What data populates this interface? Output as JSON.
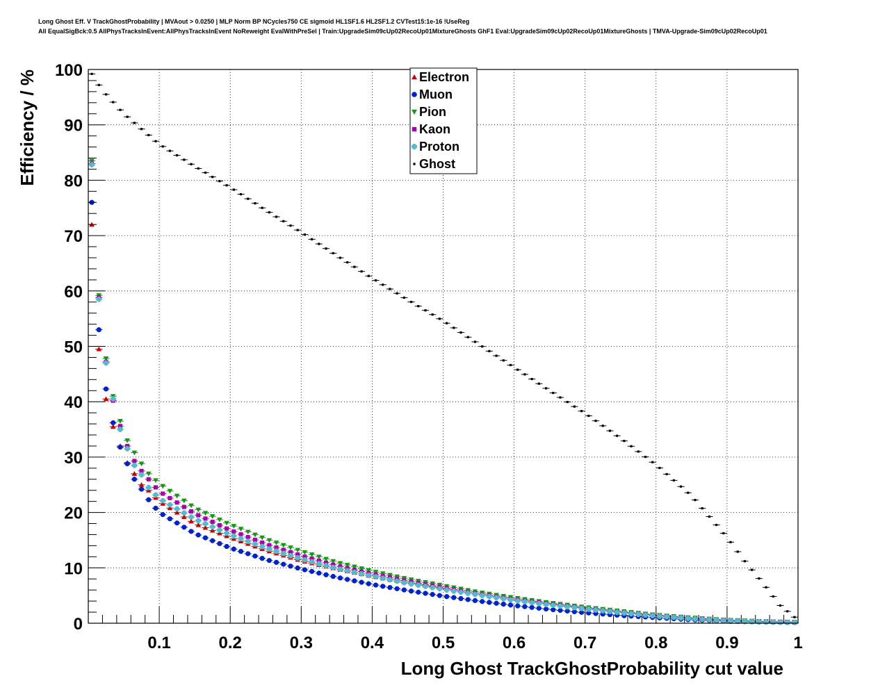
{
  "header": {
    "title_line1": "Long Ghost Eff. V TrackGhostProbability | MVAout > 0.0250 | MLP Norm BP NCycles750 CE sigmoid HL1SF1.6 HL2SF1.2 CVTest15:1e-16 !UseReg",
    "title_line2": "All EqualSigBck:0.5 AllPhysTracksInEvent:AllPhysTracksInEvent NoReweight EvalWithPreSel | Train:UpgradeSim09cUp02RecoUp01MixtureGhosts GhF1 Eval:UpgradeSim09cUp02RecoUp01MixtureGhosts | TMVA-Upgrade-Sim09cUp02RecoUp01"
  },
  "chart_data": {
    "type": "scatter",
    "xlabel": "Long Ghost TrackGhostProbability cut value",
    "ylabel": "Efficiency / %",
    "xlim": [
      0,
      1
    ],
    "ylim": [
      0,
      100
    ],
    "xticks": [
      "0.1",
      "0.2",
      "0.3",
      "0.4",
      "0.5",
      "0.6",
      "0.7",
      "0.8",
      "0.9",
      "1"
    ],
    "yticks": [
      "0",
      "10",
      "20",
      "30",
      "40",
      "50",
      "60",
      "70",
      "80",
      "90",
      "100"
    ],
    "grid": true,
    "legend_position": "top-center",
    "x_step": 0.01,
    "series": [
      {
        "name": "Electron",
        "color": "#cc0000",
        "marker": "triangle-up",
        "anchors": [
          [
            0.005,
            72
          ],
          [
            0.015,
            49.5
          ],
          [
            0.025,
            40.5
          ],
          [
            0.035,
            35.5
          ],
          [
            0.045,
            32
          ],
          [
            0.055,
            29
          ],
          [
            0.065,
            27
          ],
          [
            0.075,
            25
          ],
          [
            0.085,
            24
          ],
          [
            0.1,
            22
          ],
          [
            0.15,
            18
          ],
          [
            0.2,
            15.5
          ],
          [
            0.25,
            13.2
          ],
          [
            0.3,
            11.3
          ],
          [
            0.35,
            9.8
          ],
          [
            0.4,
            8.5
          ],
          [
            0.45,
            7.3
          ],
          [
            0.5,
            6.3
          ],
          [
            0.55,
            5.3
          ],
          [
            0.6,
            4.3
          ],
          [
            0.65,
            3.5
          ],
          [
            0.7,
            2.7
          ],
          [
            0.75,
            2
          ],
          [
            0.8,
            1.4
          ],
          [
            0.85,
            0.9
          ],
          [
            0.9,
            0.5
          ],
          [
            0.95,
            0.3
          ],
          [
            0.995,
            0.2
          ]
        ]
      },
      {
        "name": "Muon",
        "color": "#0022cc",
        "marker": "circle",
        "anchors": [
          [
            0.005,
            76
          ],
          [
            0.015,
            53
          ],
          [
            0.025,
            42.3
          ],
          [
            0.035,
            36.2
          ],
          [
            0.045,
            31.8
          ],
          [
            0.055,
            28.8
          ],
          [
            0.065,
            26
          ],
          [
            0.075,
            24.2
          ],
          [
            0.085,
            22.3
          ],
          [
            0.1,
            20
          ],
          [
            0.15,
            16.2
          ],
          [
            0.2,
            13.6
          ],
          [
            0.25,
            11.5
          ],
          [
            0.3,
            9.8
          ],
          [
            0.35,
            8.3
          ],
          [
            0.4,
            7
          ],
          [
            0.45,
            5.9
          ],
          [
            0.5,
            4.9
          ],
          [
            0.55,
            4
          ],
          [
            0.6,
            3.2
          ],
          [
            0.65,
            2.5
          ],
          [
            0.7,
            1.9
          ],
          [
            0.75,
            1.4
          ],
          [
            0.8,
            1
          ],
          [
            0.85,
            0.6
          ],
          [
            0.9,
            0.35
          ],
          [
            0.95,
            0.2
          ],
          [
            0.995,
            0.1
          ]
        ]
      },
      {
        "name": "Pion",
        "color": "#119911",
        "marker": "triangle-down",
        "anchors": [
          [
            0.005,
            83.5
          ],
          [
            0.015,
            59.2
          ],
          [
            0.025,
            47.8
          ],
          [
            0.035,
            41
          ],
          [
            0.045,
            36.5
          ],
          [
            0.055,
            33
          ],
          [
            0.065,
            30.8
          ],
          [
            0.075,
            28.8
          ],
          [
            0.085,
            27
          ],
          [
            0.1,
            25.2
          ],
          [
            0.15,
            20.8
          ],
          [
            0.2,
            17.8
          ],
          [
            0.25,
            15.2
          ],
          [
            0.3,
            13
          ],
          [
            0.35,
            11
          ],
          [
            0.4,
            9.4
          ],
          [
            0.45,
            8
          ],
          [
            0.5,
            6.8
          ],
          [
            0.55,
            5.6
          ],
          [
            0.6,
            4.6
          ],
          [
            0.65,
            3.7
          ],
          [
            0.7,
            2.9
          ],
          [
            0.75,
            2.2
          ],
          [
            0.8,
            1.5
          ],
          [
            0.85,
            1
          ],
          [
            0.9,
            0.6
          ],
          [
            0.95,
            0.35
          ],
          [
            0.995,
            0.2
          ]
        ]
      },
      {
        "name": "Kaon",
        "color": "#aa00aa",
        "marker": "square",
        "anchors": [
          [
            0.005,
            83
          ],
          [
            0.015,
            58.8
          ],
          [
            0.025,
            47.2
          ],
          [
            0.035,
            40.2
          ],
          [
            0.045,
            35.6
          ],
          [
            0.055,
            32
          ],
          [
            0.065,
            29.3
          ],
          [
            0.075,
            27.5
          ],
          [
            0.085,
            26
          ],
          [
            0.1,
            23.8
          ],
          [
            0.15,
            19.8
          ],
          [
            0.2,
            16.8
          ],
          [
            0.25,
            14.3
          ],
          [
            0.3,
            12.2
          ],
          [
            0.35,
            10.4
          ],
          [
            0.4,
            8.9
          ],
          [
            0.45,
            7.6
          ],
          [
            0.5,
            6.4
          ],
          [
            0.55,
            5.3
          ],
          [
            0.6,
            4.3
          ],
          [
            0.65,
            3.5
          ],
          [
            0.7,
            2.7
          ],
          [
            0.75,
            2
          ],
          [
            0.8,
            1.4
          ],
          [
            0.85,
            0.9
          ],
          [
            0.9,
            0.5
          ],
          [
            0.95,
            0.3
          ],
          [
            0.995,
            0.2
          ]
        ]
      },
      {
        "name": "Proton",
        "color": "#55bbcc",
        "marker": "cross",
        "anchors": [
          [
            0.005,
            82.8
          ],
          [
            0.015,
            58.5
          ],
          [
            0.025,
            47
          ],
          [
            0.035,
            40.5
          ],
          [
            0.045,
            35
          ],
          [
            0.055,
            31.5
          ],
          [
            0.065,
            28.5
          ],
          [
            0.075,
            26.8
          ],
          [
            0.085,
            24.5
          ],
          [
            0.1,
            22.5
          ],
          [
            0.15,
            18.8
          ],
          [
            0.2,
            16
          ],
          [
            0.25,
            13.6
          ],
          [
            0.3,
            11.6
          ],
          [
            0.35,
            9.9
          ],
          [
            0.4,
            8.5
          ],
          [
            0.45,
            7.2
          ],
          [
            0.5,
            6.1
          ],
          [
            0.55,
            5.1
          ],
          [
            0.6,
            4.1
          ],
          [
            0.65,
            3.3
          ],
          [
            0.7,
            2.6
          ],
          [
            0.75,
            1.9
          ],
          [
            0.8,
            1.3
          ],
          [
            0.85,
            0.8
          ],
          [
            0.9,
            0.45
          ],
          [
            0.95,
            0.25
          ],
          [
            0.995,
            0.15
          ]
        ]
      },
      {
        "name": "Ghost",
        "color": "#000000",
        "marker": "dot",
        "anchors": [
          [
            0.005,
            99.2
          ],
          [
            0.015,
            97.2
          ],
          [
            0.025,
            95.5
          ],
          [
            0.05,
            92
          ],
          [
            0.1,
            86.5
          ],
          [
            0.15,
            82.5
          ],
          [
            0.2,
            78.7
          ],
          [
            0.25,
            74.6
          ],
          [
            0.3,
            70.6
          ],
          [
            0.35,
            66.4
          ],
          [
            0.4,
            62.3
          ],
          [
            0.45,
            58.4
          ],
          [
            0.5,
            54.6
          ],
          [
            0.55,
            50.4
          ],
          [
            0.6,
            46.2
          ],
          [
            0.65,
            42
          ],
          [
            0.7,
            37.9
          ],
          [
            0.75,
            33.4
          ],
          [
            0.8,
            28.6
          ],
          [
            0.85,
            23
          ],
          [
            0.9,
            15.5
          ],
          [
            0.925,
            11.2
          ],
          [
            0.95,
            7.3
          ],
          [
            0.975,
            3.2
          ],
          [
            0.995,
            1.1
          ]
        ]
      }
    ]
  }
}
